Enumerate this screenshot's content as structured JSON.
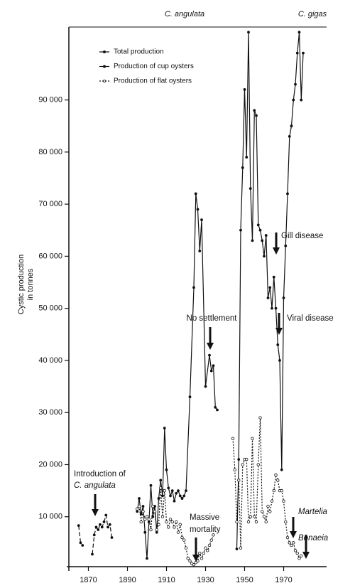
{
  "chart_data": {
    "type": "line",
    "ylabel": [
      "Cystic production",
      "in tonnes"
    ],
    "xlim": [
      1860,
      1992
    ],
    "xticks": [
      1870,
      1890,
      1910,
      1930,
      1950,
      1970
    ],
    "ylim": [
      0,
      104000
    ],
    "yticks": [
      {
        "value": 10000,
        "label": "10 000"
      },
      {
        "value": 20000,
        "label": "20 000"
      },
      {
        "value": 30000,
        "label": "30 000"
      },
      {
        "value": 40000,
        "label": "40 000"
      },
      {
        "value": 50000,
        "label": "50 000"
      },
      {
        "value": 60000,
        "label": "60 000"
      },
      {
        "value": 70000,
        "label": "70 000"
      },
      {
        "value": 80000,
        "label": "80 000"
      },
      {
        "value": 90000,
        "label": "90 000"
      }
    ],
    "legend": "upper left",
    "series": [
      {
        "name": "Total production",
        "color": "#111111",
        "line_style": "dashed",
        "marker": "dot",
        "x": [
          1865,
          1866,
          1867,
          1869,
          1872,
          1873,
          1874,
          1875,
          1876,
          1877,
          1878,
          1879,
          1880,
          1881,
          1882
        ],
        "values": [
          8300,
          5000,
          4500,
          null,
          2800,
          6500,
          8000,
          7500,
          8500,
          8000,
          9000,
          10300,
          8000,
          8500,
          6000
        ]
      },
      {
        "name": "Production of cup oysters",
        "color": "#111111",
        "line_style": "solid",
        "marker": "dot",
        "x": [
          1895,
          1896,
          1897,
          1898,
          1899,
          1900,
          1901,
          1902,
          1903,
          1904,
          1905,
          1906,
          1907,
          1908,
          1909,
          1910,
          1911,
          1912,
          1913,
          1914,
          1915,
          1916,
          1917,
          1918,
          1919,
          1920,
          1922,
          1924,
          1925,
          1926,
          1927,
          1928,
          1930,
          1932,
          1933,
          1934,
          1935,
          1936,
          1940,
          1946,
          1947,
          1948,
          1949,
          1950,
          1951,
          1952,
          1953,
          1954,
          1955,
          1956,
          1957,
          1958,
          1959,
          1960,
          1961,
          1962,
          1963,
          1964,
          1965,
          1966,
          1967,
          1968,
          1969,
          1970,
          1971,
          1972,
          1973,
          1974,
          1975,
          1976,
          1977,
          1978,
          1979,
          1980
        ],
        "values": [
          11000,
          13500,
          10500,
          12000,
          7000,
          2000,
          9000,
          16000,
          10000,
          12000,
          7000,
          13500,
          17000,
          14000,
          27000,
          19000,
          15500,
          14000,
          15000,
          13000,
          14500,
          15000,
          14000,
          13500,
          14000,
          15000,
          33000,
          54000,
          72000,
          69000,
          61000,
          67000,
          35000,
          41000,
          38000,
          39000,
          31000,
          30500,
          null,
          3800,
          21000,
          65000,
          77000,
          92000,
          79000,
          103000,
          73000,
          63000,
          88000,
          87000,
          66000,
          65000,
          63000,
          60000,
          64000,
          52000,
          54000,
          50000,
          56000,
          50000,
          43000,
          40000,
          19000,
          52000,
          62000,
          72000,
          83000,
          85000,
          90000,
          93000,
          99000,
          103000,
          90000,
          99000
        ]
      },
      {
        "name": "Production of flat oysters",
        "color": "#111111",
        "line_style": "dotted",
        "marker": "circle",
        "x": [
          1895,
          1896,
          1897,
          1898,
          1899,
          1900,
          1901,
          1902,
          1903,
          1904,
          1905,
          1906,
          1907,
          1908,
          1909,
          1910,
          1911,
          1912,
          1913,
          1914,
          1915,
          1916,
          1917,
          1918,
          1919,
          1920,
          1921,
          1922,
          1923,
          1924,
          1925,
          1926,
          1927,
          1928,
          1929,
          1930,
          1931,
          1932,
          1933,
          1934,
          1940,
          1944,
          1945,
          1946,
          1947,
          1948,
          1949,
          1950,
          1951,
          1952,
          1953,
          1954,
          1955,
          1956,
          1957,
          1958,
          1959,
          1960,
          1961,
          1962,
          1963,
          1964,
          1965,
          1966,
          1967,
          1968,
          1969,
          1970,
          1971,
          1972,
          1973,
          1974,
          1975,
          1976,
          1977,
          1978,
          1979
        ],
        "values": [
          11500,
          12000,
          9000,
          11000,
          9500,
          10000,
          9500,
          7500,
          12000,
          11000,
          7500,
          8500,
          15500,
          10000,
          15000,
          9000,
          8000,
          9500,
          9000,
          8000,
          9000,
          7000,
          8500,
          6000,
          5500,
          4000,
          2000,
          1500,
          1000,
          800,
          1200,
          1500,
          3000,
          2000,
          3000,
          4000,
          3500,
          4500,
          5500,
          6500,
          null,
          25000,
          19000,
          9000,
          17000,
          4000,
          20000,
          21000,
          21000,
          9000,
          10000,
          25000,
          10000,
          9000,
          20000,
          29000,
          11000,
          10000,
          9000,
          12000,
          11000,
          13000,
          15000,
          18000,
          17000,
          15000,
          15000,
          13000,
          9000,
          6000,
          5000,
          4500,
          5000,
          3500,
          3000,
          2000,
          2500
        ]
      }
    ],
    "annotations": [
      "C. angulata",
      "C. gigas",
      "Introduction of",
      "C. angulata",
      "No settlement",
      "Gill disease",
      "Viral disease",
      "Massive",
      "mortality",
      "Martelia",
      "Bonaeia"
    ]
  }
}
